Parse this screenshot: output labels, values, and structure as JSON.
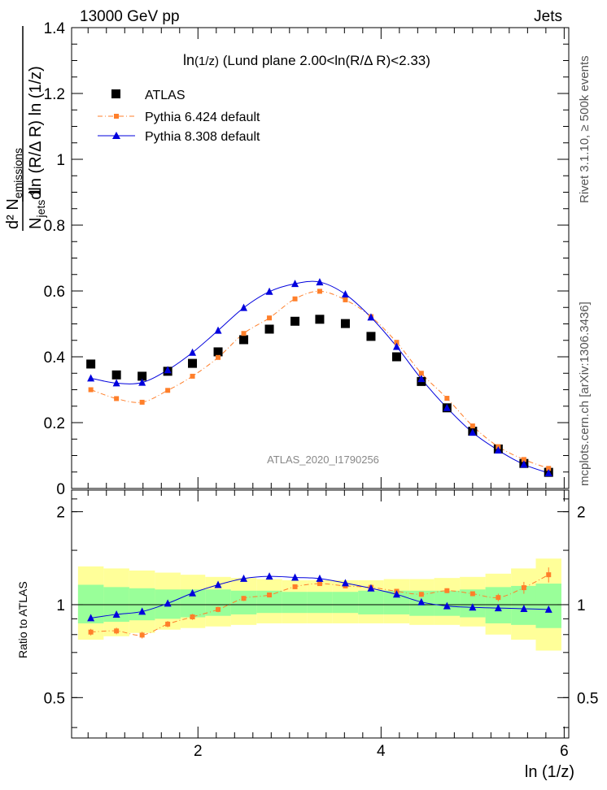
{
  "header": {
    "energy_label": "13000 GeV pp",
    "category_label": "Jets"
  },
  "side_labels": {
    "rivet": "Rivet 3.1.10, ≥ 500k events",
    "mcplots": "mcplots.cern.ch [arXiv:1306.3436]"
  },
  "chart_data": {
    "type": "scatter",
    "title_parts": {
      "main": "ln",
      "sub": "(1/z)",
      "rest": " (Lund plane 2.00<ln(R/Δ R)<2.33)"
    },
    "analysis_label": "ATLAS_2020_I1790256",
    "xlabel": "ln (1/z)",
    "ylabel": {
      "numerator": "d² N",
      "numerator_sub": "emissions",
      "denominator_parts": [
        "N",
        "jets",
        "dln (R/Δ R) ln (1/z)"
      ],
      "prefactor": "1"
    },
    "ratio_ylabel": "Ratio to ATLAS",
    "xlim": [
      0.62,
      6.05
    ],
    "ylim": [
      0,
      1.4
    ],
    "ratio_ylim": [
      0.37,
      2.35
    ],
    "x_ticks": [
      2,
      4,
      6
    ],
    "y_ticks": [
      0,
      0.2,
      0.4,
      0.6,
      0.8,
      1,
      1.2,
      1.4
    ],
    "y_tick_labels": [
      "0",
      "0.2",
      "0.4",
      "0.6",
      "0.8",
      "1",
      "1.2",
      "1.4"
    ],
    "ratio_ticks": [
      0.5,
      1,
      2
    ],
    "ratio_tick_labels": [
      "0.5",
      "1",
      "2"
    ],
    "x": [
      0.83,
      1.11,
      1.39,
      1.67,
      1.94,
      2.22,
      2.5,
      2.78,
      3.06,
      3.33,
      3.61,
      3.89,
      4.17,
      4.44,
      4.72,
      5.0,
      5.28,
      5.56,
      5.83
    ],
    "bin_edges": [
      0.69,
      0.97,
      1.25,
      1.53,
      1.81,
      2.08,
      2.36,
      2.64,
      2.92,
      3.19,
      3.47,
      3.75,
      4.03,
      4.31,
      4.58,
      4.86,
      5.14,
      5.42,
      5.69,
      5.97
    ],
    "series": [
      {
        "name": "ATLAS",
        "color": "#000000",
        "marker": "square",
        "values": [
          0.378,
          0.345,
          0.341,
          0.356,
          0.38,
          0.415,
          0.452,
          0.484,
          0.508,
          0.514,
          0.501,
          0.462,
          0.4,
          0.325,
          0.245,
          0.174,
          0.12,
          0.076,
          0.049
        ]
      },
      {
        "name": "Pythia 6.424 default",
        "color": "#ff7f2a",
        "marker": "small-square",
        "line": "dashdot",
        "values": [
          0.3,
          0.273,
          0.262,
          0.298,
          0.341,
          0.398,
          0.471,
          0.518,
          0.576,
          0.599,
          0.573,
          0.522,
          0.444,
          0.35,
          0.274,
          0.19,
          0.127,
          0.088,
          0.061
        ]
      },
      {
        "name": "Pythia 8.308 default",
        "color": "#0000dd",
        "marker": "triangle",
        "line": "solid",
        "values": [
          0.335,
          0.32,
          0.322,
          0.36,
          0.413,
          0.48,
          0.549,
          0.598,
          0.622,
          0.627,
          0.59,
          0.52,
          0.431,
          0.333,
          0.245,
          0.17,
          0.116,
          0.073,
          0.047
        ]
      }
    ],
    "ratio_series": [
      {
        "name": "Pythia 6.424 default",
        "color": "#ff7f2a",
        "values": [
          0.815,
          0.822,
          0.797,
          0.865,
          0.913,
          0.965,
          1.048,
          1.075,
          1.143,
          1.17,
          1.15,
          1.138,
          1.105,
          1.08,
          1.11,
          1.085,
          1.055,
          1.135,
          1.25
        ],
        "errors": [
          0.02,
          0.02,
          0.02,
          0.02,
          0.02,
          0.02,
          0.02,
          0.02,
          0.02,
          0.02,
          0.02,
          0.02,
          0.02,
          0.02,
          0.02,
          0.02,
          0.03,
          0.05,
          0.07
        ]
      },
      {
        "name": "Pythia 8.308 default",
        "color": "#0000dd",
        "values": [
          0.905,
          0.93,
          0.95,
          1.01,
          1.09,
          1.16,
          1.215,
          1.235,
          1.225,
          1.215,
          1.175,
          1.13,
          1.08,
          1.02,
          0.99,
          0.98,
          0.975,
          0.97,
          0.965
        ]
      }
    ],
    "band_inner": [
      [
        0.87,
        1.16
      ],
      [
        0.88,
        1.14
      ],
      [
        0.89,
        1.13
      ],
      [
        0.9,
        1.12
      ],
      [
        0.91,
        1.12
      ],
      [
        0.92,
        1.12
      ],
      [
        0.93,
        1.11
      ],
      [
        0.94,
        1.11
      ],
      [
        0.94,
        1.1
      ],
      [
        0.94,
        1.1
      ],
      [
        0.94,
        1.1
      ],
      [
        0.93,
        1.11
      ],
      [
        0.93,
        1.11
      ],
      [
        0.92,
        1.11
      ],
      [
        0.92,
        1.11
      ],
      [
        0.91,
        1.12
      ],
      [
        0.87,
        1.14
      ],
      [
        0.86,
        1.15
      ],
      [
        0.84,
        1.17
      ]
    ],
    "band_outer": [
      [
        0.77,
        1.33
      ],
      [
        0.79,
        1.31
      ],
      [
        0.81,
        1.29
      ],
      [
        0.83,
        1.27
      ],
      [
        0.84,
        1.25
      ],
      [
        0.85,
        1.23
      ],
      [
        0.86,
        1.22
      ],
      [
        0.87,
        1.21
      ],
      [
        0.87,
        1.2
      ],
      [
        0.87,
        1.2
      ],
      [
        0.87,
        1.2
      ],
      [
        0.87,
        1.2
      ],
      [
        0.87,
        1.21
      ],
      [
        0.86,
        1.21
      ],
      [
        0.86,
        1.22
      ],
      [
        0.85,
        1.23
      ],
      [
        0.8,
        1.26
      ],
      [
        0.77,
        1.31
      ],
      [
        0.71,
        1.41
      ]
    ],
    "band_colors": {
      "inner": "#99ff99",
      "outer": "#ffff99"
    }
  }
}
